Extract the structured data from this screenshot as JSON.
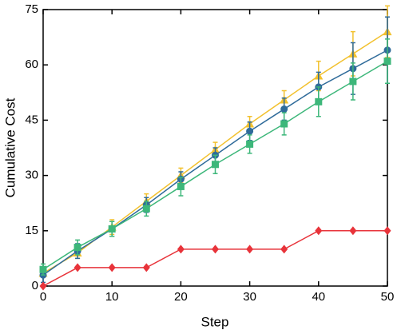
{
  "chart_data": {
    "type": "line",
    "x_label": "Step",
    "y_label": "Cumulative Cost",
    "x": [
      0,
      5,
      10,
      15,
      20,
      25,
      30,
      35,
      40,
      45,
      50
    ],
    "xlim": [
      0,
      50
    ],
    "xticks": [
      0,
      10,
      20,
      30,
      40,
      50
    ],
    "ylim": [
      0,
      75
    ],
    "yticks": [
      0,
      15,
      30,
      45,
      60,
      75
    ],
    "series": [
      {
        "color": "#f2c12e",
        "marker": "triangle",
        "values": [
          3.5,
          9,
          16,
          23,
          30,
          37,
          44,
          50.5,
          57,
          63,
          69
        ],
        "errors": [
          1,
          1.5,
          2,
          2,
          2,
          2,
          2,
          2.5,
          4,
          6,
          7
        ]
      },
      {
        "color": "#2f6b9a",
        "marker": "circle",
        "values": [
          3,
          9.5,
          15.5,
          22,
          29,
          35.5,
          42,
          48,
          54,
          59,
          64
        ],
        "errors": [
          2,
          2,
          2,
          2,
          2,
          2,
          2.5,
          3,
          4,
          7,
          9
        ]
      },
      {
        "color": "#3db77a",
        "marker": "square",
        "values": [
          4.5,
          10.5,
          15.5,
          21,
          27,
          33,
          38.5,
          44,
          50,
          55.5,
          61
        ],
        "errors": [
          1.5,
          2,
          2,
          2,
          2.5,
          2.5,
          2.5,
          3,
          4,
          5,
          6
        ]
      },
      {
        "color": "#e8333a",
        "marker": "diamond",
        "values": [
          0,
          5,
          5,
          5,
          10,
          10,
          10,
          10,
          15,
          15,
          15
        ]
      }
    ]
  }
}
